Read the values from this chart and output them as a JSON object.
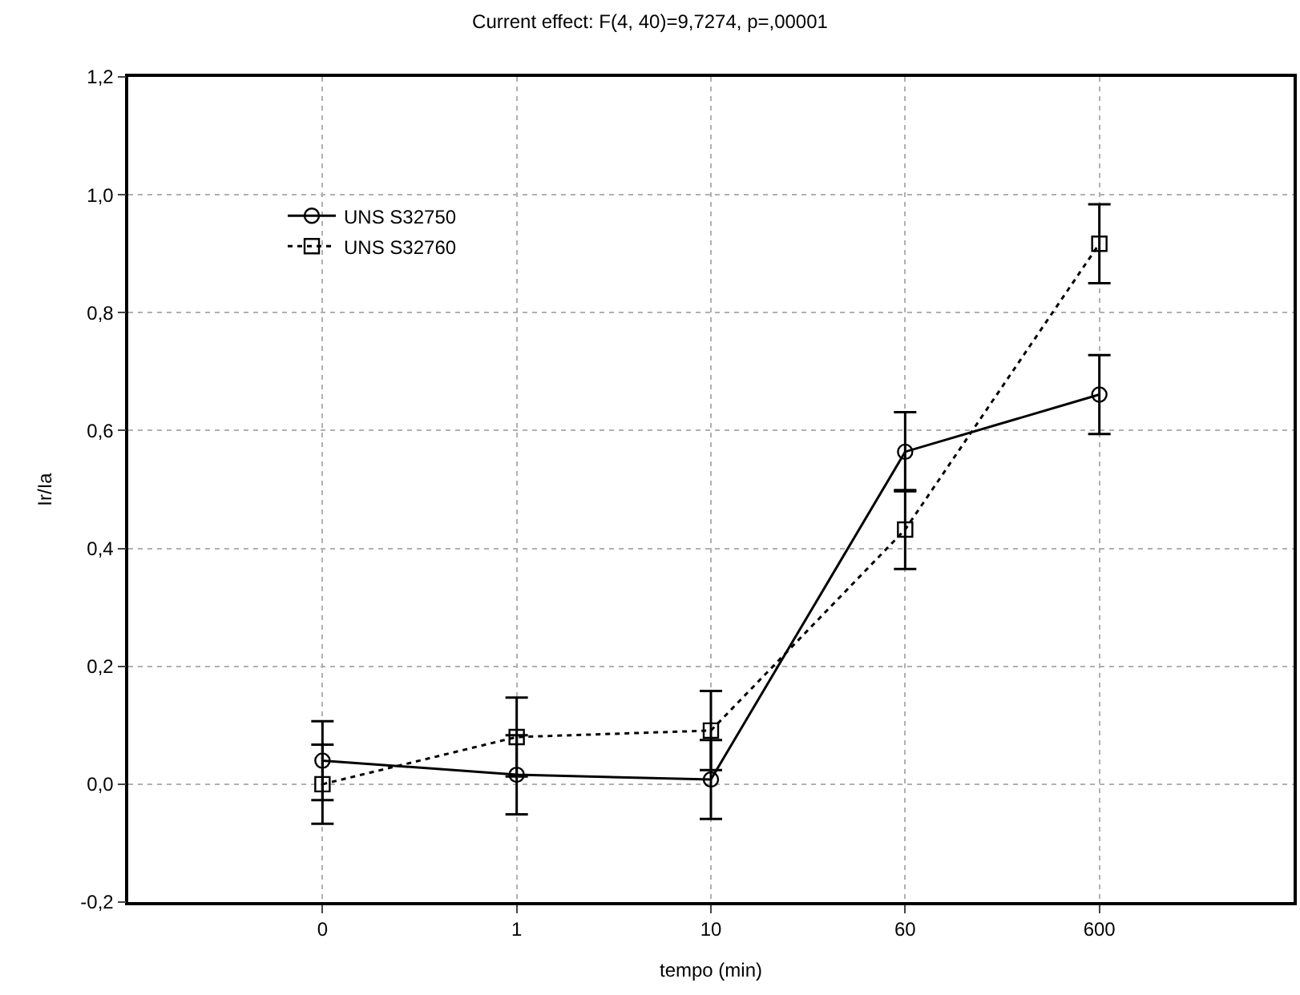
{
  "chart_data": {
    "type": "line",
    "title": "Current effect: F(4, 40)=9,7274, p=,00001",
    "xlabel": "tempo (min)",
    "ylabel": "Ir/Ia",
    "categories": [
      "0",
      "1",
      "10",
      "60",
      "600"
    ],
    "series": [
      {
        "name": "UNS S32750",
        "color": "#000000",
        "marker": "circle",
        "line_style": "solid",
        "values": [
          0.04,
          0.016,
          0.008,
          0.564,
          0.661
        ],
        "errors": [
          0.067,
          0.067,
          0.067,
          0.067,
          0.067
        ]
      },
      {
        "name": "UNS S32760",
        "color": "#000000",
        "marker": "square",
        "line_style": "dotted",
        "values": [
          0.0,
          0.08,
          0.091,
          0.432,
          0.917
        ],
        "errors": [
          0.067,
          0.067,
          0.067,
          0.067,
          0.067
        ]
      }
    ],
    "ylim": [
      -0.2,
      1.2
    ],
    "yticks": [
      {
        "value": -0.2,
        "label": "-0,2"
      },
      {
        "value": 0,
        "label": "0,0"
      },
      {
        "value": 0.2,
        "label": "0,2"
      },
      {
        "value": 0.4,
        "label": "0,4"
      },
      {
        "value": 0.6,
        "label": "0,6"
      },
      {
        "value": 0.8,
        "label": "0,8"
      },
      {
        "value": 1.0,
        "label": "1,0"
      },
      {
        "value": 1.2,
        "label": "1,2"
      }
    ],
    "grid": true,
    "legend": "top left"
  }
}
